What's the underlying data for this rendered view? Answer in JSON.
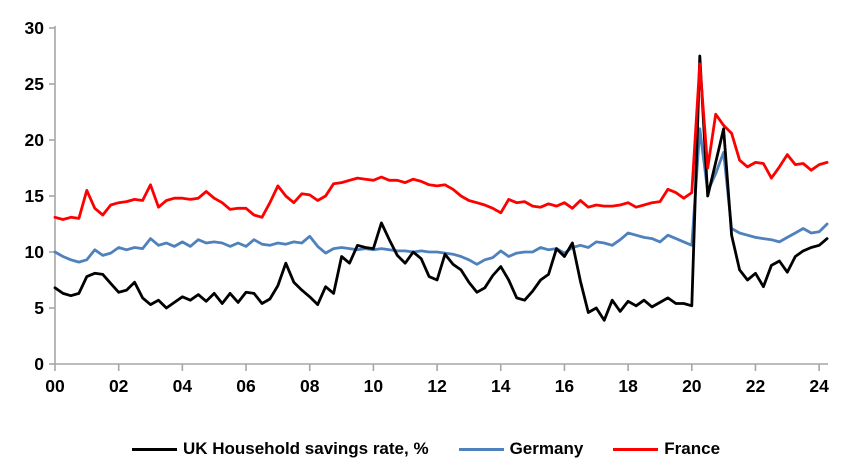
{
  "chart_data": {
    "type": "line",
    "title": "",
    "xlabel": "",
    "ylabel": "",
    "x_axis": {
      "tick_labels": [
        "00",
        "02",
        "04",
        "06",
        "08",
        "10",
        "12",
        "14",
        "16",
        "18",
        "20",
        "22",
        "24"
      ],
      "tick_years": [
        0,
        2,
        4,
        6,
        8,
        10,
        12,
        14,
        16,
        18,
        20,
        22,
        24
      ],
      "start_year": 2000,
      "frequency": "quarterly",
      "end": "2024 Q2"
    },
    "y_axis": {
      "ticks": [
        0,
        5,
        10,
        15,
        20,
        25,
        30
      ],
      "ylim": [
        0,
        30
      ]
    },
    "grid": false,
    "legend_position": "bottom",
    "axis_color": "#a6a6a6",
    "tick_label_color": "#000000",
    "series": [
      {
        "name": "Germany",
        "color": "#4f81bd",
        "legend_order": 2,
        "values": [
          10.0,
          9.6,
          9.3,
          9.1,
          9.3,
          10.2,
          9.7,
          9.9,
          10.4,
          10.2,
          10.4,
          10.3,
          11.2,
          10.6,
          10.8,
          10.5,
          10.9,
          10.5,
          11.1,
          10.8,
          10.9,
          10.8,
          10.5,
          10.8,
          10.5,
          11.1,
          10.7,
          10.6,
          10.8,
          10.7,
          10.9,
          10.8,
          11.4,
          10.5,
          9.9,
          10.3,
          10.4,
          10.3,
          10.2,
          10.3,
          10.2,
          10.3,
          10.2,
          10.1,
          10.1,
          10.0,
          10.1,
          10.0,
          10.0,
          9.9,
          9.8,
          9.6,
          9.3,
          8.9,
          9.3,
          9.5,
          10.1,
          9.6,
          9.9,
          10.0,
          10.0,
          10.4,
          10.2,
          10.3,
          9.9,
          10.4,
          10.6,
          10.4,
          10.9,
          10.8,
          10.6,
          11.1,
          11.7,
          11.5,
          11.3,
          11.2,
          10.9,
          11.5,
          11.2,
          10.9,
          10.6,
          21.0,
          15.4,
          17.0,
          18.9,
          12.1,
          11.7,
          11.5,
          11.3,
          11.2,
          11.1,
          10.9,
          11.3,
          11.7,
          12.1,
          11.7,
          11.8,
          12.5
        ]
      },
      {
        "name": "UK Household savings rate, %",
        "color": "#000000",
        "legend_order": 1,
        "values": [
          6.8,
          6.3,
          6.1,
          6.3,
          7.8,
          8.1,
          8.0,
          7.2,
          6.4,
          6.6,
          7.3,
          5.9,
          5.3,
          5.7,
          5.0,
          5.5,
          6.0,
          5.7,
          6.2,
          5.6,
          6.3,
          5.4,
          6.3,
          5.5,
          6.4,
          6.3,
          5.4,
          5.8,
          7.0,
          9.0,
          7.3,
          6.6,
          6.0,
          5.3,
          6.9,
          6.3,
          9.6,
          9.0,
          10.6,
          10.4,
          10.3,
          12.6,
          11.1,
          9.7,
          9.0,
          10.0,
          9.4,
          7.8,
          7.5,
          9.8,
          8.9,
          8.4,
          7.3,
          6.4,
          6.8,
          7.9,
          8.7,
          7.5,
          5.9,
          5.7,
          6.5,
          7.5,
          8.0,
          10.3,
          9.6,
          10.8,
          7.4,
          4.6,
          5.0,
          3.9,
          5.7,
          4.7,
          5.6,
          5.2,
          5.7,
          5.1,
          5.5,
          5.9,
          5.4,
          5.4,
          5.2,
          27.5,
          15.0,
          18.0,
          21.0,
          11.5,
          8.4,
          7.5,
          8.1,
          6.9,
          8.8,
          9.2,
          8.2,
          9.6,
          10.1,
          10.4,
          10.6,
          11.2
        ]
      },
      {
        "name": "France",
        "color": "#fe0000",
        "legend_order": 3,
        "values": [
          13.1,
          12.9,
          13.1,
          13.0,
          15.5,
          13.9,
          13.3,
          14.2,
          14.4,
          14.5,
          14.7,
          14.6,
          16.0,
          14.0,
          14.6,
          14.8,
          14.8,
          14.7,
          14.8,
          15.4,
          14.8,
          14.4,
          13.8,
          13.9,
          13.9,
          13.3,
          13.1,
          14.4,
          15.9,
          15.0,
          14.4,
          15.2,
          15.1,
          14.6,
          15.0,
          16.1,
          16.2,
          16.4,
          16.6,
          16.5,
          16.4,
          16.7,
          16.4,
          16.4,
          16.2,
          16.5,
          16.3,
          16.0,
          15.9,
          16.0,
          15.6,
          15.0,
          14.6,
          14.4,
          14.2,
          13.9,
          13.5,
          14.7,
          14.4,
          14.5,
          14.1,
          14.0,
          14.3,
          14.1,
          14.4,
          13.9,
          14.6,
          14.0,
          14.2,
          14.1,
          14.1,
          14.2,
          14.4,
          14.0,
          14.2,
          14.4,
          14.5,
          15.6,
          15.3,
          14.8,
          15.3,
          26.8,
          17.5,
          22.3,
          21.3,
          20.6,
          18.2,
          17.6,
          18.0,
          17.9,
          16.6,
          17.6,
          18.7,
          17.8,
          17.9,
          17.3,
          17.8,
          18.0
        ]
      }
    ]
  },
  "legend": {
    "uk_label": "UK Household savings rate, %",
    "germany_label": "Germany",
    "france_label": "France"
  }
}
